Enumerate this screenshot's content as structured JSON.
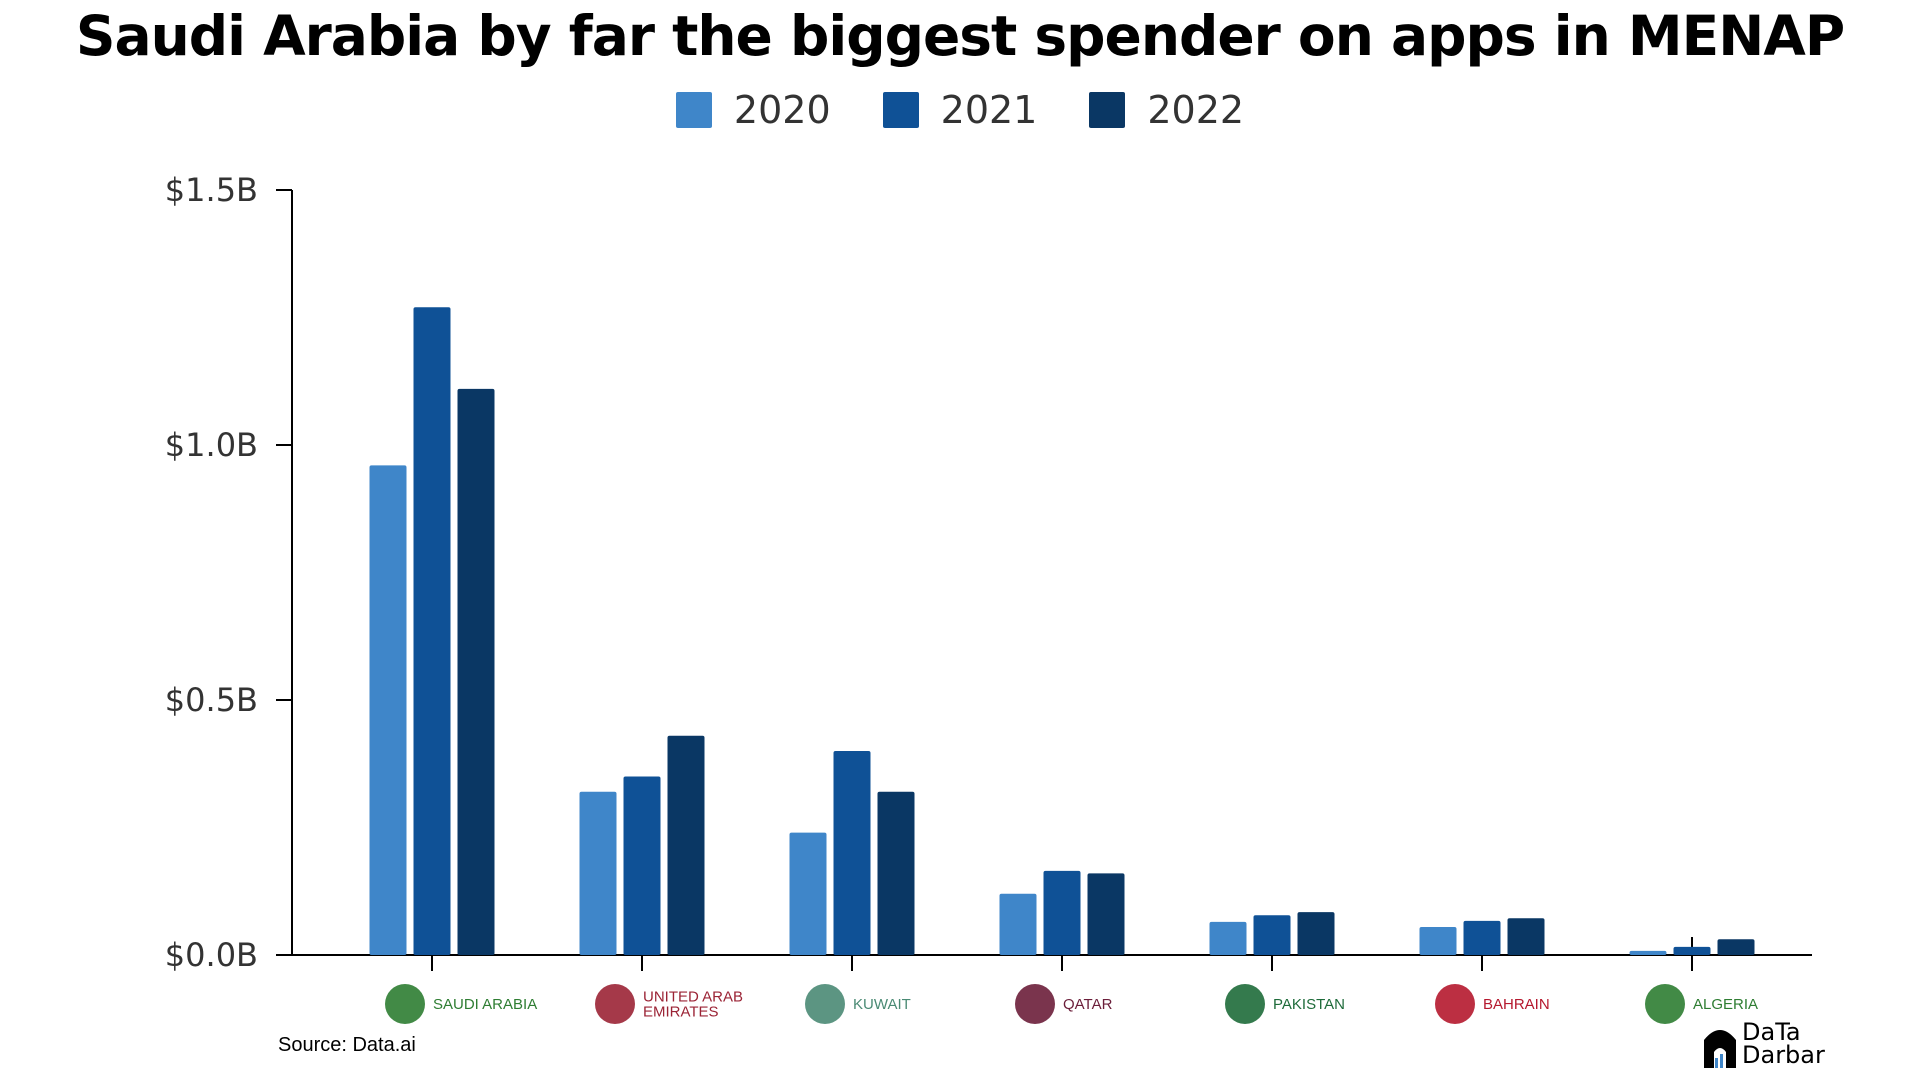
{
  "chart_data": {
    "type": "bar",
    "title": "Saudi Arabia by far the biggest spender on apps in MENAP",
    "categories": [
      "SAUDI ARABIA",
      "UNITED ARAB EMIRATES",
      "KUWAIT",
      "QATAR",
      "PAKISTAN",
      "BAHRAIN",
      "ALGERIA"
    ],
    "category_lines": [
      [
        "SAUDI ARABIA"
      ],
      [
        "UNITED ARAB",
        "EMIRATES"
      ],
      [
        "KUWAIT"
      ],
      [
        "QATAR"
      ],
      [
        "PAKISTAN"
      ],
      [
        "BAHRAIN"
      ],
      [
        "ALGERIA"
      ]
    ],
    "category_colors": [
      "#2e7d32",
      "#9b2335",
      "#4a8a74",
      "#6b1e3a",
      "#1e6b3a",
      "#b5182e",
      "#2e7d32"
    ],
    "series": [
      {
        "name": "2020",
        "color": "#3f86c9",
        "values": [
          0.96,
          0.32,
          0.24,
          0.12,
          0.065,
          0.055,
          0.008
        ]
      },
      {
        "name": "2021",
        "color": "#0f5196",
        "values": [
          1.27,
          0.35,
          0.4,
          0.165,
          0.078,
          0.067,
          0.016
        ]
      },
      {
        "name": "2022",
        "color": "#0a3764",
        "values": [
          1.11,
          0.43,
          0.32,
          0.16,
          0.084,
          0.072,
          0.031
        ]
      }
    ],
    "yticks": [
      "$0.0B",
      "$0.5B",
      "$1.0B",
      "$1.5B"
    ],
    "ylim": [
      0,
      1.5
    ],
    "legend_position": "top-center",
    "grid": false
  },
  "source": "Source: Data.ai",
  "brand": {
    "line1": "DaTa",
    "line2": "Darbar"
  }
}
